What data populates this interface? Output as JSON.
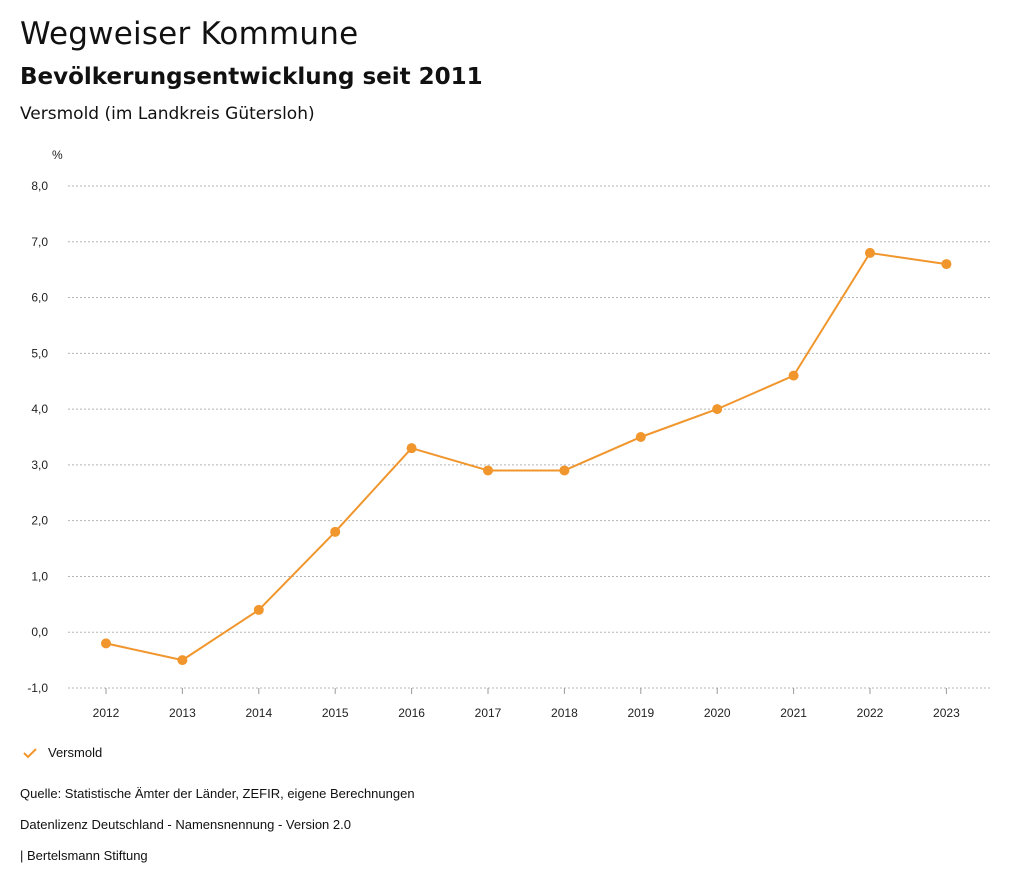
{
  "header": {
    "title": "Wegweiser Kommune",
    "subtitle": "Bevölkerungsentwicklung seit 2011",
    "region": "Versmold (im Landkreis Gütersloh)"
  },
  "colors": {
    "series": "#f0962d",
    "grid": "#b5b5b5"
  },
  "chart_data": {
    "type": "line",
    "ylabel": "%",
    "xlabel": "",
    "ylim": [
      -1.0,
      8.0
    ],
    "yticks": [
      "8,0",
      "7,0",
      "6,0",
      "5,0",
      "4,0",
      "3,0",
      "2,0",
      "1,0",
      "0,0",
      "-1,0"
    ],
    "ytick_values": [
      8,
      7,
      6,
      5,
      4,
      3,
      2,
      1,
      0,
      -1
    ],
    "x": [
      "2012",
      "2013",
      "2014",
      "2015",
      "2016",
      "2017",
      "2018",
      "2019",
      "2020",
      "2021",
      "2022",
      "2023"
    ],
    "series": [
      {
        "name": "Versmold",
        "values": [
          -0.2,
          -0.5,
          0.4,
          1.8,
          3.3,
          2.9,
          2.9,
          3.5,
          4.0,
          4.6,
          6.8,
          6.6
        ]
      }
    ],
    "grid": true,
    "legend": "bottom-left"
  },
  "footer": {
    "source": "Quelle: Statistische Ämter der Länder, ZEFIR, eigene Berechnungen",
    "license": "Datenlizenz Deutschland - Namensnennung - Version 2.0",
    "credit": "| Bertelsmann Stiftung"
  }
}
